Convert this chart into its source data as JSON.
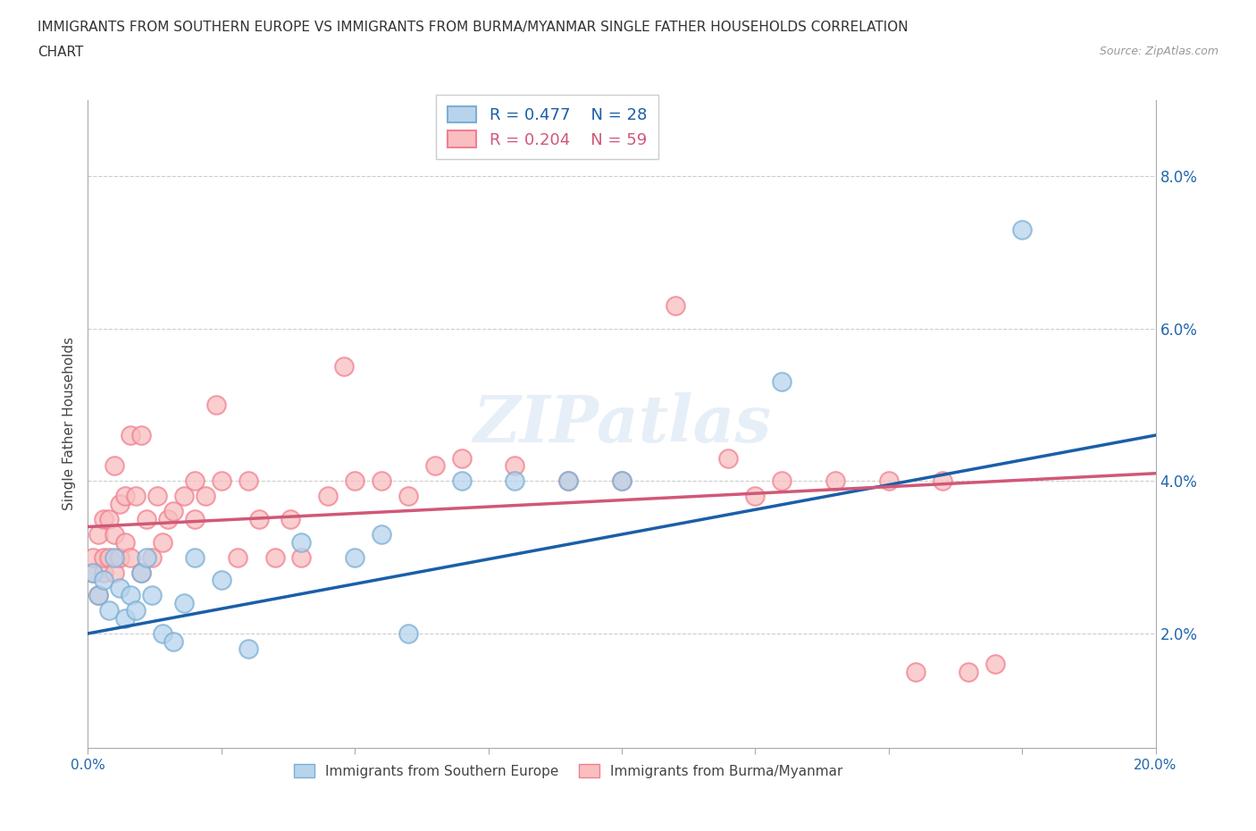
{
  "title_line1": "IMMIGRANTS FROM SOUTHERN EUROPE VS IMMIGRANTS FROM BURMA/MYANMAR SINGLE FATHER HOUSEHOLDS CORRELATION",
  "title_line2": "CHART",
  "source": "Source: ZipAtlas.com",
  "xlabel_blue": "Immigrants from Southern Europe",
  "xlabel_pink": "Immigrants from Burma/Myanmar",
  "ylabel": "Single Father Households",
  "xlim": [
    0,
    0.2
  ],
  "ylim": [
    0.005,
    0.09
  ],
  "yticks": [
    0.02,
    0.04,
    0.06,
    0.08
  ],
  "xticks": [
    0.0,
    0.025,
    0.05,
    0.075,
    0.1,
    0.125,
    0.15,
    0.175,
    0.2
  ],
  "blue_R": 0.477,
  "blue_N": 28,
  "pink_R": 0.204,
  "pink_N": 59,
  "blue_scatter_face": "#b8d4ed",
  "blue_scatter_edge": "#7aafd4",
  "pink_scatter_face": "#f9bec0",
  "pink_scatter_edge": "#f08090",
  "blue_line_color": "#1a5fa8",
  "pink_line_color": "#d05878",
  "watermark": "ZIPatlas",
  "blue_x": [
    0.001,
    0.002,
    0.003,
    0.004,
    0.005,
    0.006,
    0.007,
    0.008,
    0.009,
    0.01,
    0.011,
    0.012,
    0.014,
    0.016,
    0.018,
    0.02,
    0.025,
    0.03,
    0.04,
    0.05,
    0.055,
    0.06,
    0.07,
    0.08,
    0.09,
    0.1,
    0.13,
    0.175
  ],
  "blue_y": [
    0.028,
    0.025,
    0.027,
    0.023,
    0.03,
    0.026,
    0.022,
    0.025,
    0.023,
    0.028,
    0.03,
    0.025,
    0.02,
    0.019,
    0.024,
    0.03,
    0.027,
    0.018,
    0.032,
    0.03,
    0.033,
    0.02,
    0.04,
    0.04,
    0.04,
    0.04,
    0.053,
    0.073
  ],
  "pink_x": [
    0.001,
    0.001,
    0.002,
    0.002,
    0.003,
    0.003,
    0.003,
    0.004,
    0.004,
    0.005,
    0.005,
    0.005,
    0.006,
    0.006,
    0.007,
    0.007,
    0.008,
    0.008,
    0.009,
    0.01,
    0.01,
    0.011,
    0.012,
    0.013,
    0.014,
    0.015,
    0.016,
    0.018,
    0.02,
    0.02,
    0.022,
    0.024,
    0.025,
    0.028,
    0.03,
    0.032,
    0.035,
    0.038,
    0.04,
    0.045,
    0.048,
    0.05,
    0.055,
    0.06,
    0.065,
    0.07,
    0.08,
    0.09,
    0.1,
    0.11,
    0.12,
    0.125,
    0.13,
    0.14,
    0.15,
    0.155,
    0.16,
    0.165,
    0.17
  ],
  "pink_y": [
    0.028,
    0.03,
    0.025,
    0.033,
    0.028,
    0.03,
    0.035,
    0.03,
    0.035,
    0.028,
    0.033,
    0.042,
    0.03,
    0.037,
    0.032,
    0.038,
    0.03,
    0.046,
    0.038,
    0.028,
    0.046,
    0.035,
    0.03,
    0.038,
    0.032,
    0.035,
    0.036,
    0.038,
    0.035,
    0.04,
    0.038,
    0.05,
    0.04,
    0.03,
    0.04,
    0.035,
    0.03,
    0.035,
    0.03,
    0.038,
    0.055,
    0.04,
    0.04,
    0.038,
    0.042,
    0.043,
    0.042,
    0.04,
    0.04,
    0.063,
    0.043,
    0.038,
    0.04,
    0.04,
    0.04,
    0.015,
    0.04,
    0.015,
    0.016
  ],
  "blue_line_x0": 0.0,
  "blue_line_y0": 0.02,
  "blue_line_x1": 0.2,
  "blue_line_y1": 0.046,
  "pink_line_x0": 0.0,
  "pink_line_y0": 0.034,
  "pink_line_x1": 0.2,
  "pink_line_y1": 0.041
}
